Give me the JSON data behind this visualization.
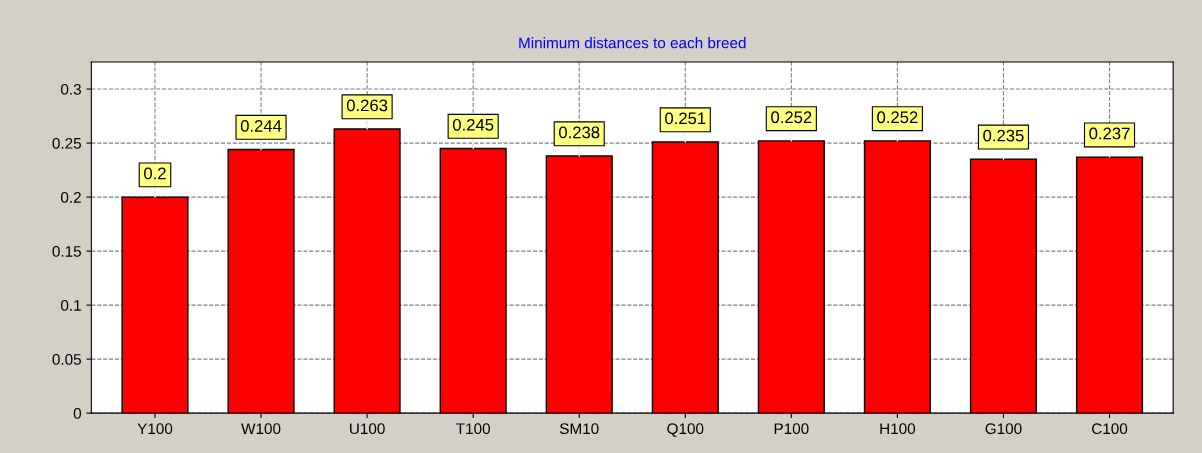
{
  "chart_data": {
    "type": "bar",
    "title": "Minimum distances to each breed",
    "categories": [
      "Y100",
      "W100",
      "U100",
      "T100",
      "SM10",
      "Q100",
      "P100",
      "H100",
      "G100",
      "C100"
    ],
    "values": [
      0.2,
      0.244,
      0.263,
      0.245,
      0.238,
      0.251,
      0.252,
      0.252,
      0.235,
      0.237
    ],
    "color": "#ff0000",
    "ylim": [
      0,
      0.325
    ],
    "yticks": [
      0,
      0.05,
      0.1,
      0.15,
      0.2,
      0.25,
      0.3
    ],
    "grid": true,
    "data_labels": true
  }
}
